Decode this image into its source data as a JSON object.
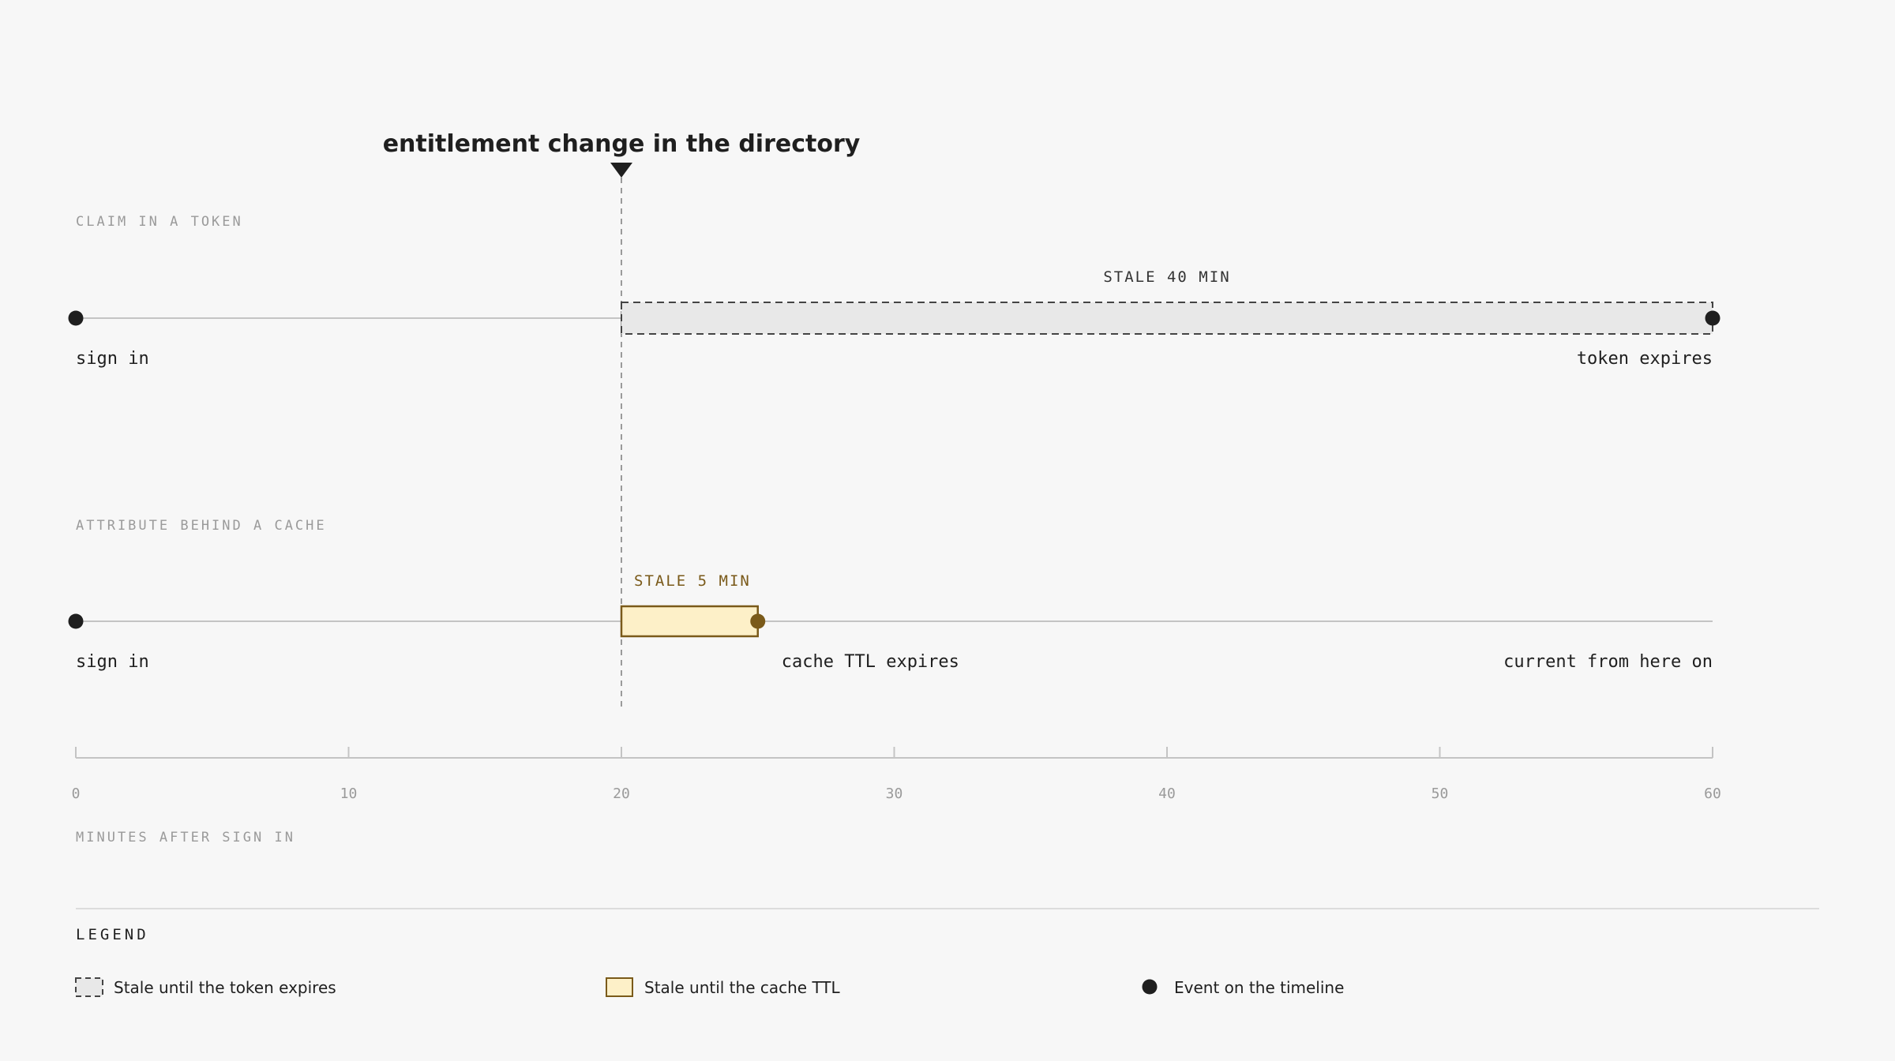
{
  "annotation": {
    "title": "entitlement change in the directory",
    "at_minute": 20
  },
  "axis": {
    "label": "MINUTES AFTER SIGN IN",
    "min": 0,
    "max": 60,
    "ticks": [
      "0",
      "10",
      "20",
      "30",
      "40",
      "50",
      "60"
    ]
  },
  "tracks": [
    {
      "label": "CLAIM IN A TOKEN",
      "stale_label": "STALE 40 MIN",
      "stale_start": 20,
      "stale_end": 60,
      "stale_kind": "token",
      "start_event": {
        "minute": 0,
        "label": "sign in"
      },
      "end_event": {
        "minute": 60,
        "label": "token expires"
      }
    },
    {
      "label": "ATTRIBUTE BEHIND A CACHE",
      "stale_label": "STALE 5 MIN",
      "stale_start": 20,
      "stale_end": 25,
      "stale_kind": "cache",
      "start_event": {
        "minute": 0,
        "label": "sign in"
      },
      "end_event": {
        "minute": 25,
        "label": "cache TTL expires"
      },
      "tail_label": "current from here on"
    }
  ],
  "legend": {
    "title": "LEGEND",
    "items": [
      {
        "kind": "token",
        "label": "Stale until the token expires"
      },
      {
        "kind": "cache",
        "label": "Stale until the cache TTL"
      },
      {
        "kind": "event",
        "label": "Event on the timeline"
      }
    ]
  },
  "colors": {
    "ink": "#1f1f1f",
    "muted": "#9a9a9a",
    "line": "#c4c4c4",
    "token_fill": "#e8e8e8",
    "token_stroke": "#444444",
    "cache_fill": "#fdf0c8",
    "cache_stroke": "#7a5a1a",
    "cache_text": "#7a5a1a",
    "cache_dot": "#7a5a1a"
  }
}
